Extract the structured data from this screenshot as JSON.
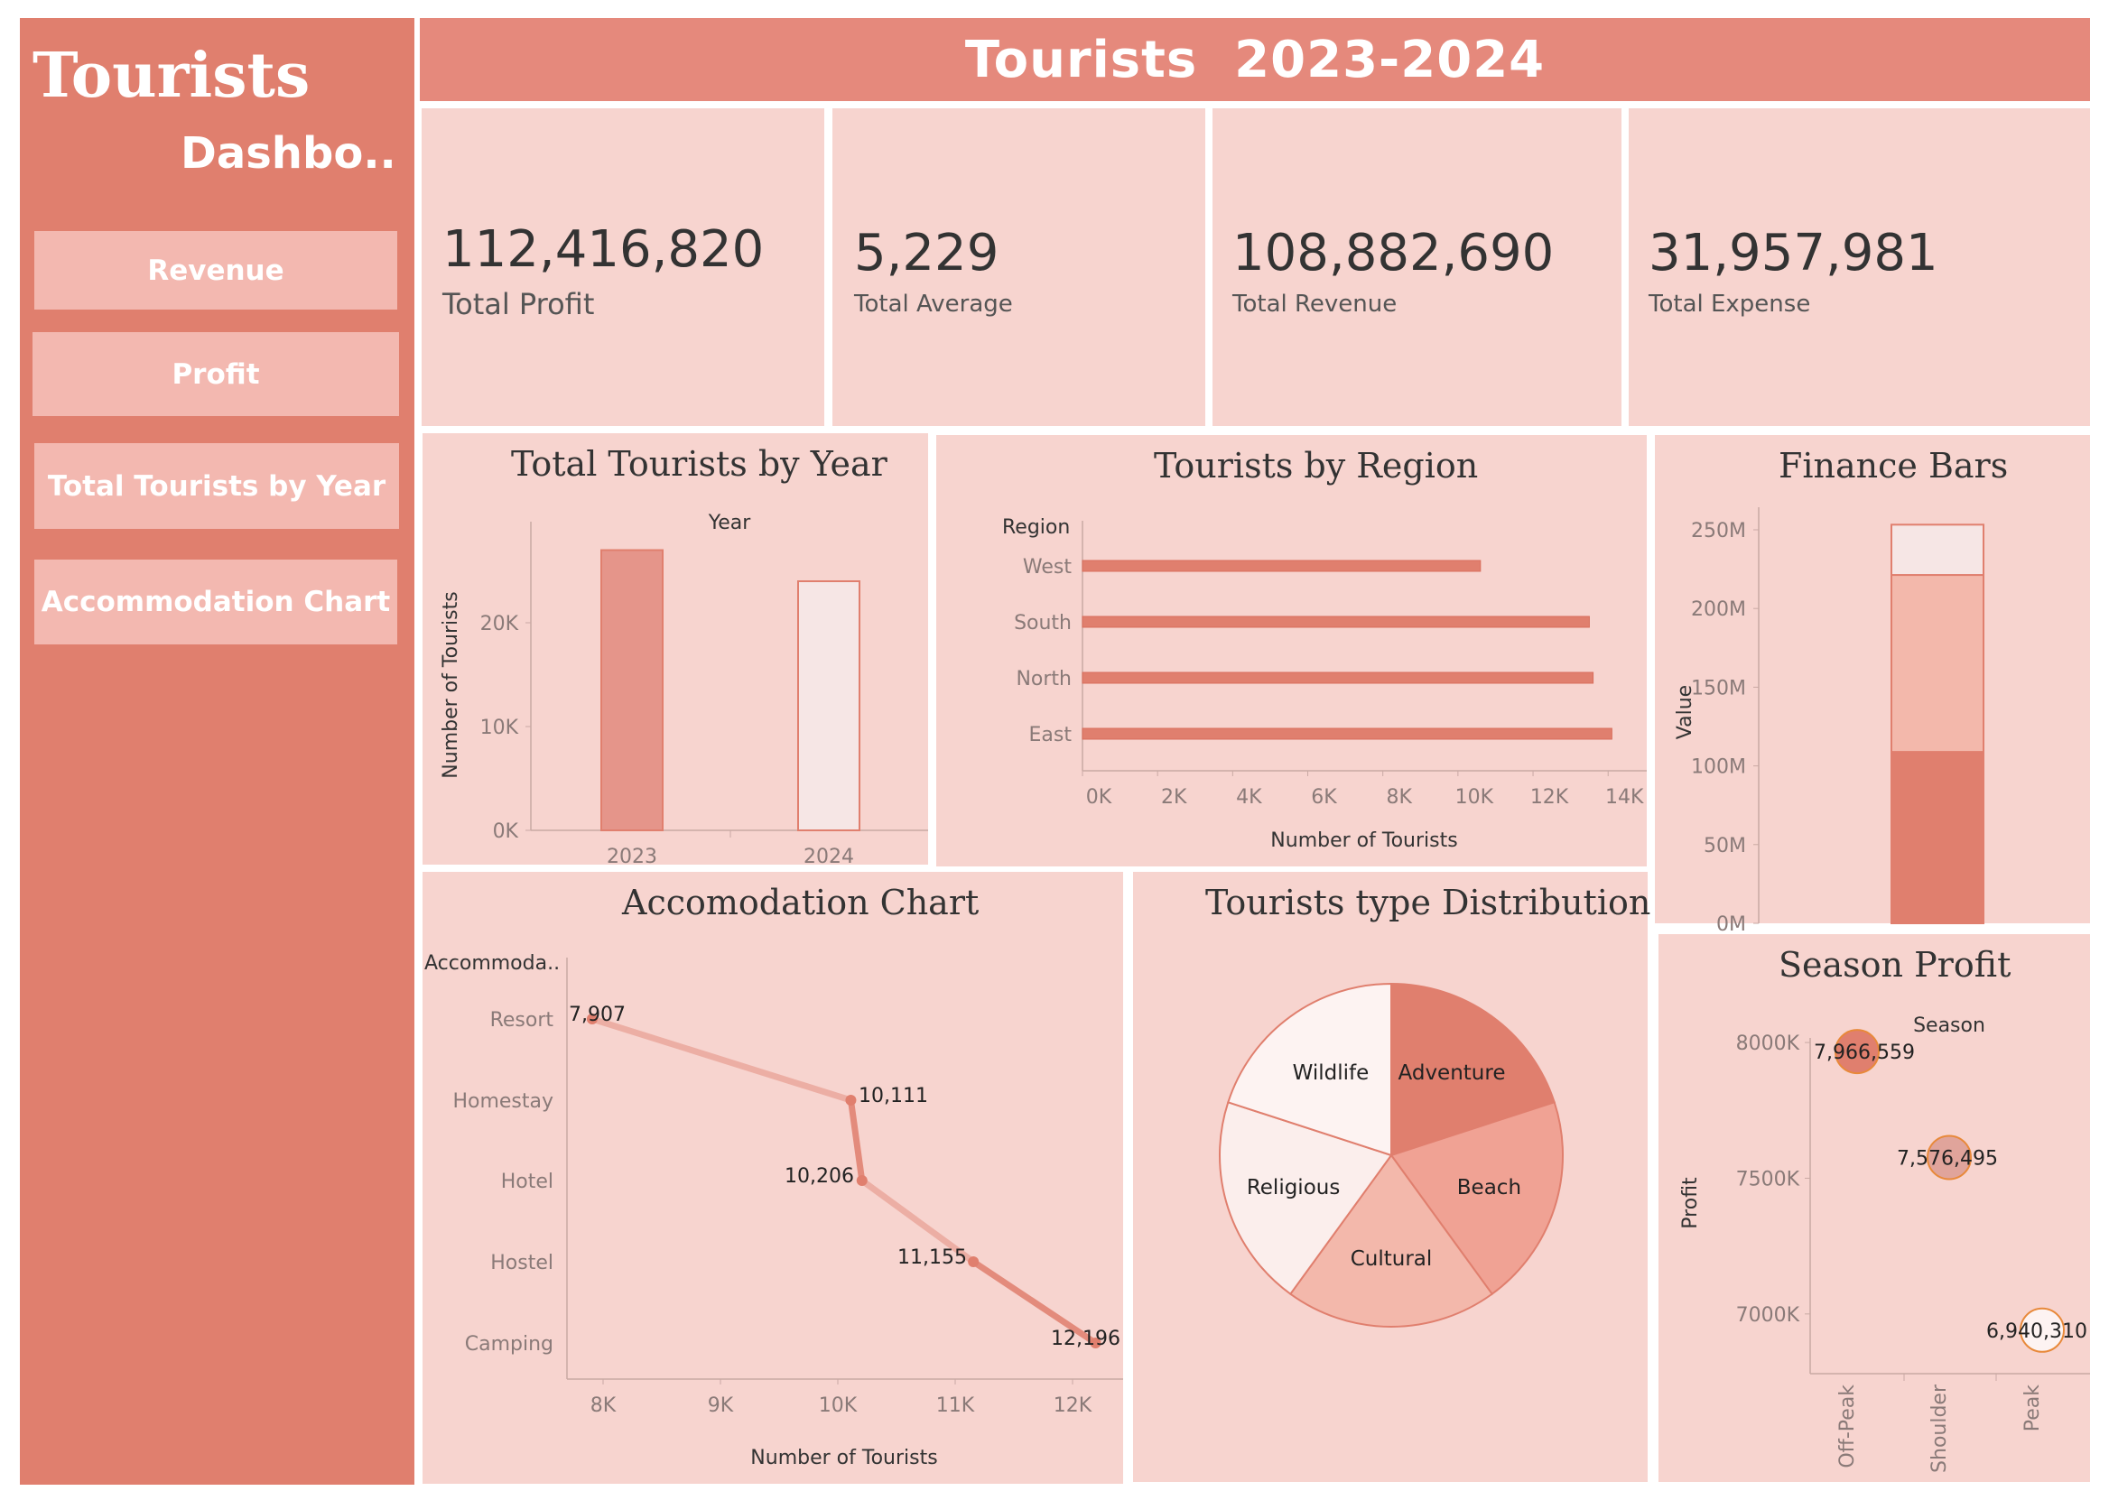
{
  "sidebar": {
    "title": "Tourists",
    "subtitle": "Dashbo..",
    "nav": [
      {
        "label": "Revenue"
      },
      {
        "label": "Profit"
      },
      {
        "label": "Total Tourists by Year"
      },
      {
        "label": "Accommodation Chart"
      }
    ]
  },
  "header": {
    "title": "Tourists  2023-2024"
  },
  "colors": {
    "sidebar": "#e07f6e",
    "header": "#e5897c",
    "panel": "#f7d4cf",
    "accent": "#e07f6e",
    "light": "#f3b8b0",
    "pale": "#f6e6e5"
  },
  "kpis": [
    {
      "value": "112,416,820",
      "label": "Total Profit"
    },
    {
      "value": "5,229",
      "label": "Total Average"
    },
    {
      "value": "108,882,690",
      "label": "Total Revenue"
    },
    {
      "value": "31,957,981",
      "label": "Total Expense"
    }
  ],
  "chart_data": [
    {
      "id": "year",
      "type": "bar",
      "title": "Total Tourists by Year",
      "header": "Year",
      "categories": [
        "2023",
        "2024"
      ],
      "values": [
        27000,
        24000
      ],
      "ylabel": "Number of Tourists",
      "yticks": [
        "0K",
        "10K",
        "20K"
      ],
      "ylim": [
        0,
        28000
      ],
      "colors": [
        "#e5958a",
        "#f6e6e5"
      ]
    },
    {
      "id": "region",
      "type": "bar",
      "orientation": "horizontal",
      "title": "Tourists by Region",
      "header": "Region",
      "categories": [
        "West",
        "South",
        "North",
        "East"
      ],
      "values": [
        10600,
        13500,
        13600,
        14100
      ],
      "xlabel": "Number of Tourists",
      "xticks": [
        "0K",
        "2K",
        "4K",
        "6K",
        "8K",
        "10K",
        "12K",
        "14K"
      ],
      "xlim": [
        0,
        14500
      ]
    },
    {
      "id": "finance",
      "type": "bar",
      "stacked": true,
      "title": "Finance Bars",
      "ylabel": "Value",
      "yticks": [
        "0M",
        "50M",
        "100M",
        "150M",
        "200M",
        "250M"
      ],
      "ylim": [
        0,
        250000000
      ],
      "segments": [
        108882690,
        112416820,
        31957981
      ],
      "colors": [
        "#e07f6e",
        "#f3b8ab",
        "#f6e6e5"
      ]
    },
    {
      "id": "accommodation",
      "type": "line",
      "title": "Accomodation Chart",
      "header": "Accommoda..",
      "categories": [
        "Resort",
        "Homestay",
        "Hotel",
        "Hostel",
        "Camping"
      ],
      "values": [
        7907,
        10111,
        10206,
        11155,
        12196
      ],
      "labels": [
        "7,907",
        "10,111",
        "10,206",
        "11,155",
        "12,196"
      ],
      "xlabel": "Number of Tourists",
      "xticks": [
        "8K",
        "9K",
        "10K",
        "11K",
        "12K"
      ],
      "xlim": [
        7700,
        12400
      ]
    },
    {
      "id": "type",
      "type": "pie",
      "title": "Tourists type Distribution",
      "labels": [
        "Adventure",
        "Beach",
        "Cultural",
        "Religious",
        "Wildlife"
      ],
      "values": [
        20,
        20,
        20,
        20,
        20
      ],
      "colors": [
        "#e07f6e",
        "#f0a294",
        "#f3b8ab",
        "#fbeeec",
        "#fdf3f2"
      ]
    },
    {
      "id": "season",
      "type": "scatter",
      "title": "Season Profit",
      "header": "Season",
      "categories": [
        "Off-Peak",
        "Shoulder",
        "Peak"
      ],
      "values": [
        7966559,
        7576495,
        6940310
      ],
      "labels": [
        "7,966,559",
        "7,576,495",
        "6,940,310"
      ],
      "ylabel": "Profit",
      "yticks": [
        "7000K",
        "7500K",
        "8000K"
      ],
      "ylim": [
        6780000,
        8100000
      ],
      "colors": [
        "#e07f6e",
        "#e0a49b",
        "#fdf3f2"
      ]
    }
  ]
}
